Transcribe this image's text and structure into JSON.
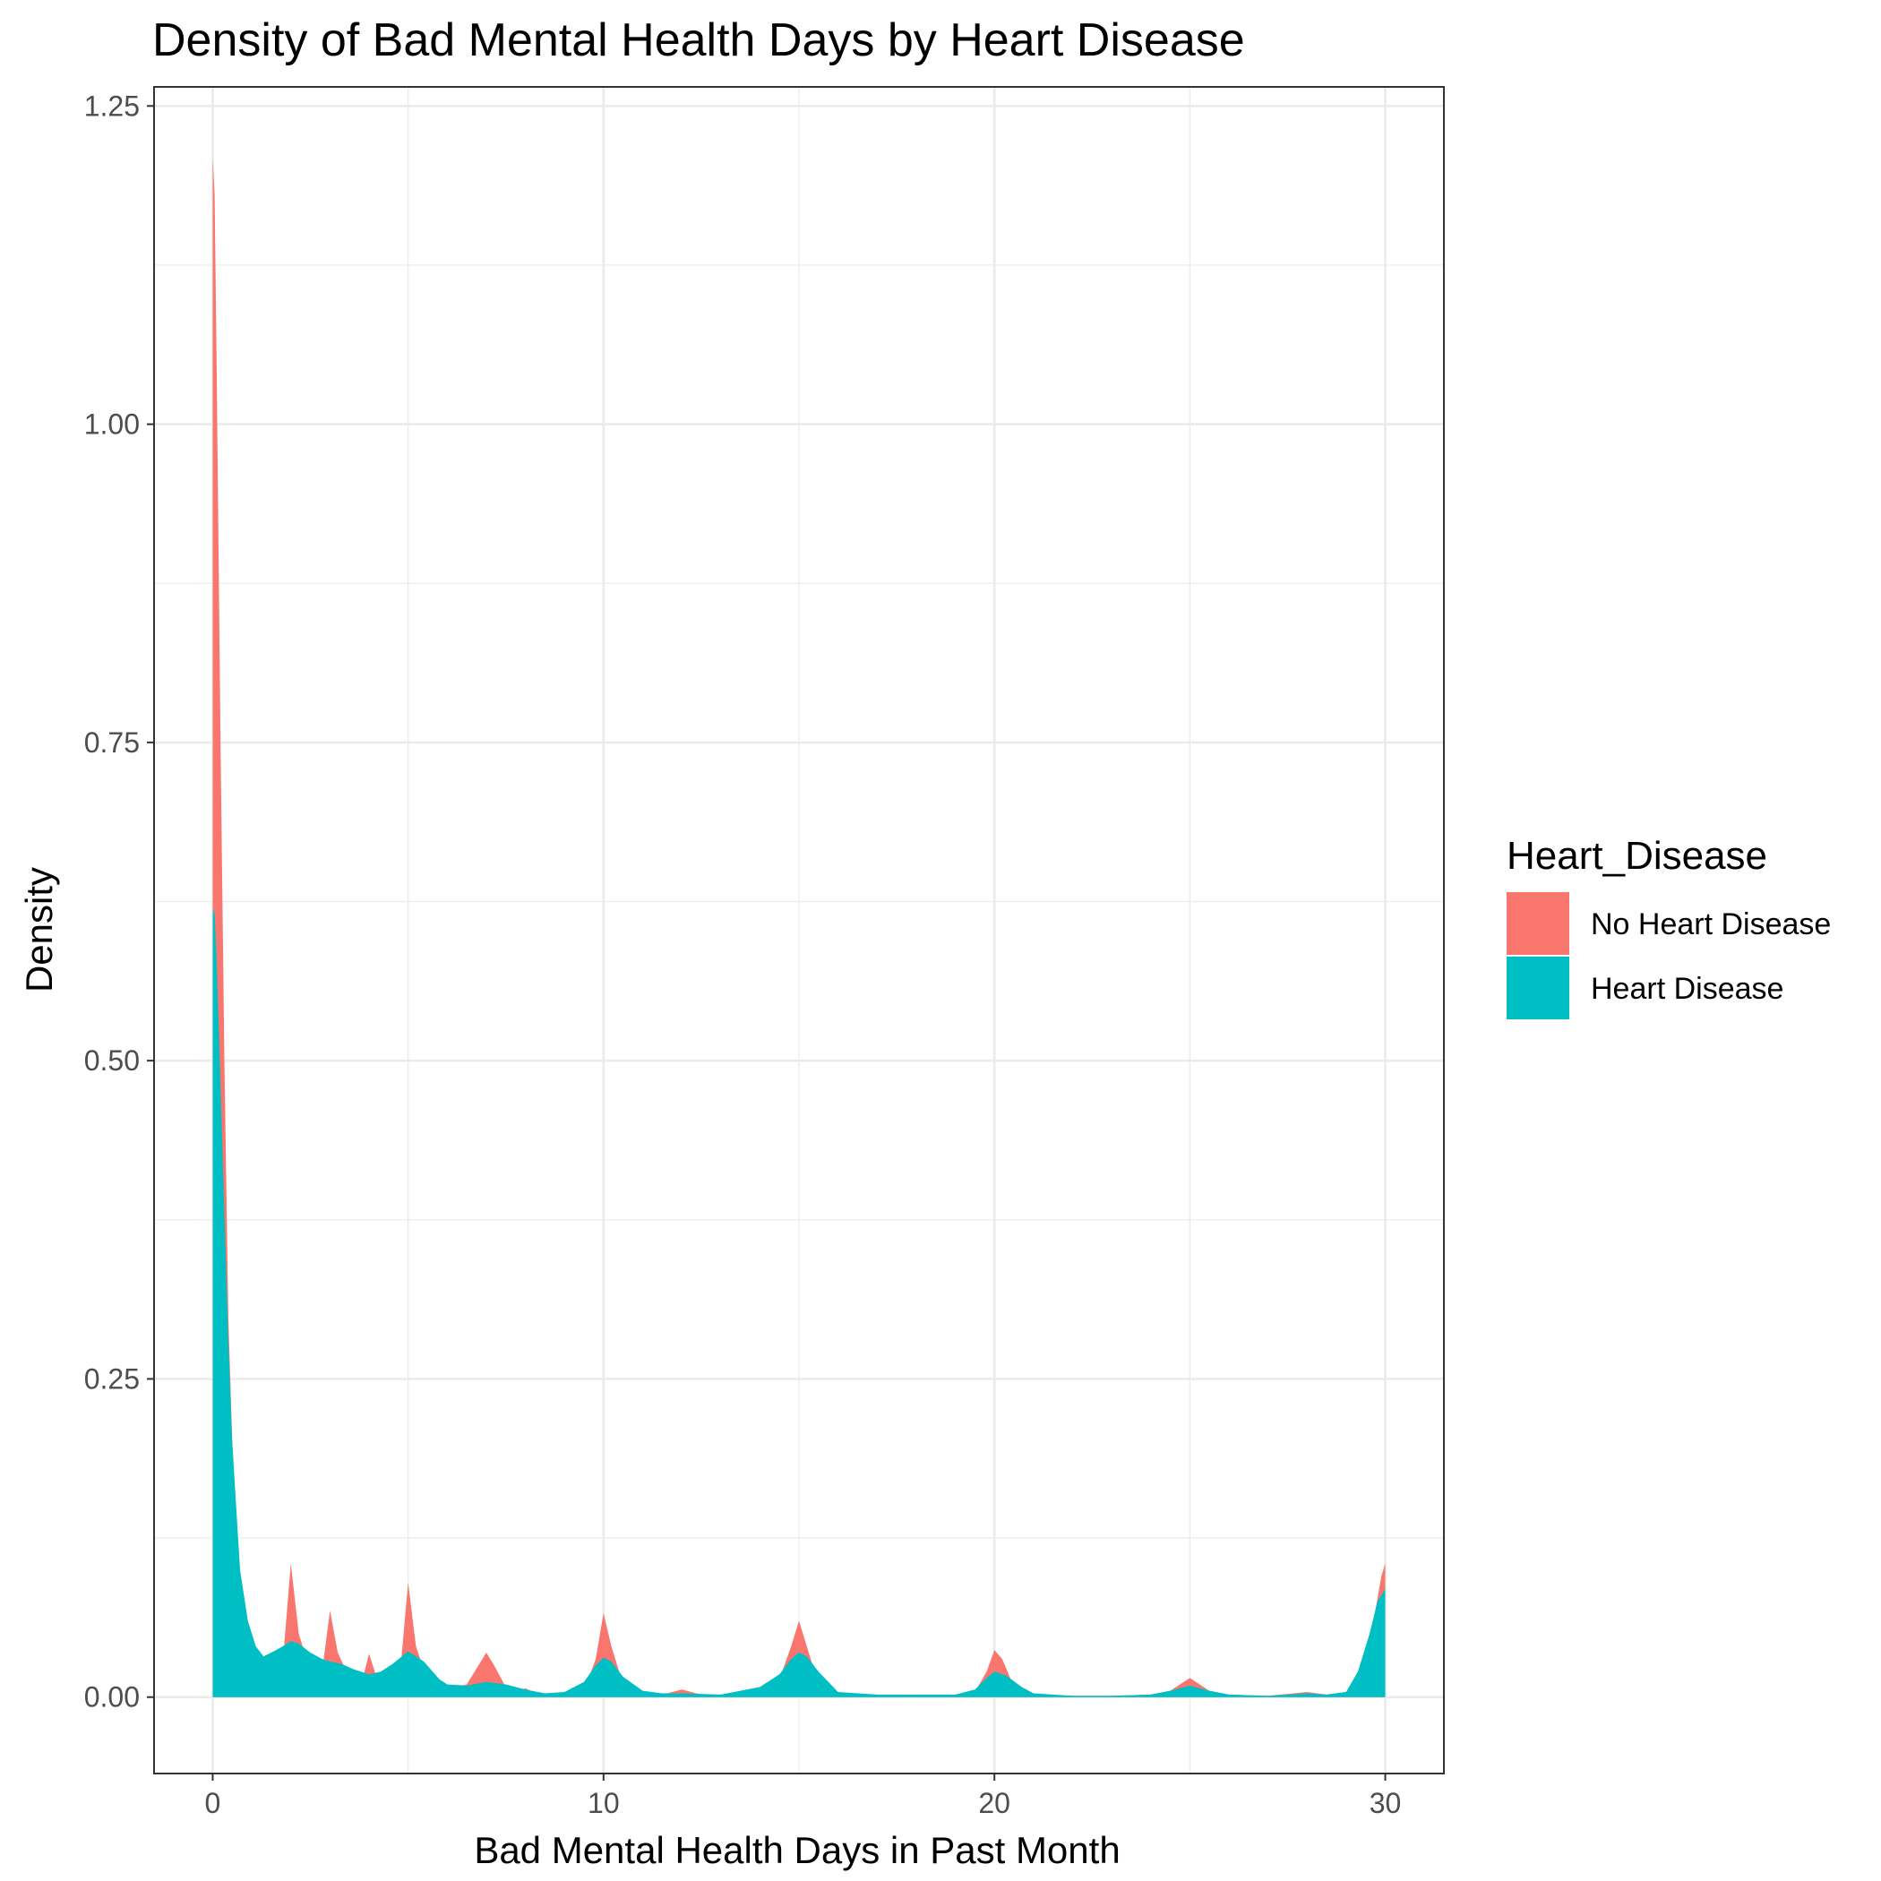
{
  "chart_data": {
    "type": "area",
    "title": "Density of Bad Mental Health Days by Heart Disease",
    "xlabel": "Bad Mental Health Days in Past Month",
    "ylabel": "Density",
    "xlim": [
      -1.5,
      31.5
    ],
    "ylim": [
      -0.06,
      1.265
    ],
    "x_ticks": [
      0,
      10,
      20,
      30
    ],
    "x_tick_labels": [
      "0",
      "10",
      "20",
      "30"
    ],
    "y_ticks": [
      0,
      0.25,
      0.5,
      0.75,
      1.0,
      1.25
    ],
    "y_tick_labels": [
      "0.00",
      "0.25",
      "0.50",
      "0.75",
      "1.00",
      "1.25"
    ],
    "grid": true,
    "legend": {
      "title": "Heart_Disease",
      "position": "right"
    },
    "series": [
      {
        "name": "No Heart Disease",
        "color": "#F8766D",
        "x": [
          0,
          0.05,
          0.1,
          0.2,
          0.3,
          0.4,
          0.5,
          0.7,
          0.9,
          1.1,
          1.3,
          1.5,
          1.8,
          2.0,
          2.2,
          2.5,
          2.8,
          3.0,
          3.2,
          3.5,
          3.8,
          4.0,
          4.2,
          4.5,
          4.8,
          5.0,
          5.2,
          5.5,
          5.8,
          6.0,
          6.2,
          6.5,
          6.8,
          7.0,
          7.2,
          7.5,
          7.8,
          8.0,
          8.2,
          8.5,
          9.0,
          9.5,
          9.8,
          10.0,
          10.2,
          10.5,
          11.0,
          11.5,
          12.0,
          12.5,
          13.0,
          13.5,
          14.0,
          14.5,
          14.8,
          15.0,
          15.2,
          15.5,
          16.0,
          17.0,
          18.0,
          19.0,
          19.5,
          19.8,
          20.0,
          20.2,
          20.5,
          21.0,
          22.0,
          23.0,
          24.0,
          24.5,
          25.0,
          25.5,
          26.0,
          27.0,
          28.0,
          28.5,
          29.0,
          29.4,
          29.7,
          29.9,
          30.0
        ],
        "values": [
          1.21,
          1.18,
          1.05,
          0.75,
          0.5,
          0.3,
          0.2,
          0.09,
          0.05,
          0.03,
          0.02,
          0.015,
          0.03,
          0.105,
          0.05,
          0.02,
          0.02,
          0.068,
          0.035,
          0.015,
          0.01,
          0.034,
          0.015,
          0.01,
          0.02,
          0.09,
          0.04,
          0.012,
          0.008,
          0.01,
          0.008,
          0.01,
          0.025,
          0.035,
          0.025,
          0.008,
          0.004,
          0.007,
          0.004,
          0.002,
          0.002,
          0.005,
          0.03,
          0.066,
          0.04,
          0.01,
          0.002,
          0.002,
          0.006,
          0.002,
          0.002,
          0.002,
          0.008,
          0.014,
          0.04,
          0.06,
          0.04,
          0.01,
          0.002,
          0.001,
          0.002,
          0.001,
          0.004,
          0.02,
          0.037,
          0.03,
          0.008,
          0.002,
          0.001,
          0.001,
          0.002,
          0.005,
          0.015,
          0.005,
          0.002,
          0.001,
          0.004,
          0.002,
          0.004,
          0.02,
          0.06,
          0.095,
          0.105
        ]
      },
      {
        "name": "Heart Disease",
        "color": "#00BFC4",
        "x": [
          0,
          0.05,
          0.1,
          0.2,
          0.3,
          0.4,
          0.5,
          0.7,
          0.9,
          1.1,
          1.3,
          1.5,
          1.8,
          2.0,
          2.2,
          2.5,
          2.8,
          3.0,
          3.3,
          3.6,
          4.0,
          4.3,
          4.6,
          5.0,
          5.4,
          5.8,
          6.0,
          6.5,
          7.0,
          7.5,
          8.0,
          8.5,
          9.0,
          9.5,
          9.8,
          10.0,
          10.2,
          10.5,
          11.0,
          11.5,
          12.0,
          13.0,
          14.0,
          14.5,
          14.8,
          15.0,
          15.2,
          15.5,
          16.0,
          17.0,
          18.0,
          19.0,
          19.5,
          19.8,
          20.0,
          20.3,
          20.7,
          21.0,
          22.0,
          23.0,
          24.0,
          24.5,
          25.0,
          25.5,
          26.0,
          27.0,
          28.0,
          28.5,
          29.0,
          29.3,
          29.6,
          29.8,
          30.0
        ],
        "values": [
          0.62,
          0.615,
          0.58,
          0.48,
          0.38,
          0.28,
          0.2,
          0.1,
          0.06,
          0.04,
          0.032,
          0.035,
          0.04,
          0.044,
          0.042,
          0.035,
          0.03,
          0.028,
          0.026,
          0.022,
          0.018,
          0.02,
          0.026,
          0.036,
          0.028,
          0.014,
          0.01,
          0.009,
          0.012,
          0.01,
          0.006,
          0.003,
          0.004,
          0.012,
          0.025,
          0.031,
          0.028,
          0.016,
          0.005,
          0.003,
          0.003,
          0.002,
          0.008,
          0.018,
          0.03,
          0.035,
          0.032,
          0.02,
          0.004,
          0.002,
          0.002,
          0.002,
          0.006,
          0.015,
          0.02,
          0.017,
          0.008,
          0.003,
          0.001,
          0.001,
          0.002,
          0.005,
          0.009,
          0.005,
          0.002,
          0.001,
          0.003,
          0.002,
          0.004,
          0.02,
          0.05,
          0.075,
          0.085
        ]
      }
    ]
  }
}
